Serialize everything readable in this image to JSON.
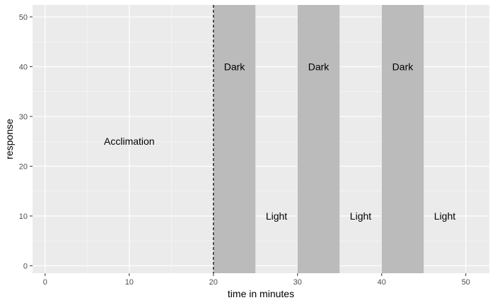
{
  "chart_data": {
    "type": "annotated-panel",
    "xlabel": "time in minutes",
    "ylabel": "response",
    "xlim": [
      -1.5,
      52.8
    ],
    "ylim": [
      -1.5,
      52.4
    ],
    "x_ticks": [
      0,
      10,
      20,
      30,
      40,
      50
    ],
    "y_ticks": [
      0,
      10,
      20,
      30,
      40,
      50
    ],
    "grid": true,
    "legend": "none",
    "vline": {
      "x": 20,
      "style": "dashed"
    },
    "shaded_regions": [
      {
        "xmin": 20,
        "xmax": 25,
        "label": "Dark"
      },
      {
        "xmin": 30,
        "xmax": 35,
        "label": "Dark"
      },
      {
        "xmin": 40,
        "xmax": 45,
        "label": "Dark"
      }
    ],
    "annotations": [
      {
        "text": "Acclimation",
        "x": 10,
        "y": 25
      },
      {
        "text": "Dark",
        "x": 22.5,
        "y": 40
      },
      {
        "text": "Dark",
        "x": 32.5,
        "y": 40
      },
      {
        "text": "Dark",
        "x": 42.5,
        "y": 40
      },
      {
        "text": "Light",
        "x": 27.5,
        "y": 10
      },
      {
        "text": "Light",
        "x": 37.5,
        "y": 10
      },
      {
        "text": "Light",
        "x": 47.5,
        "y": 10
      }
    ],
    "colors": {
      "panel_bg": "#ebebeb",
      "grid_major": "#ffffff",
      "shade": "#bbbbbb",
      "vline": "#000000"
    }
  }
}
